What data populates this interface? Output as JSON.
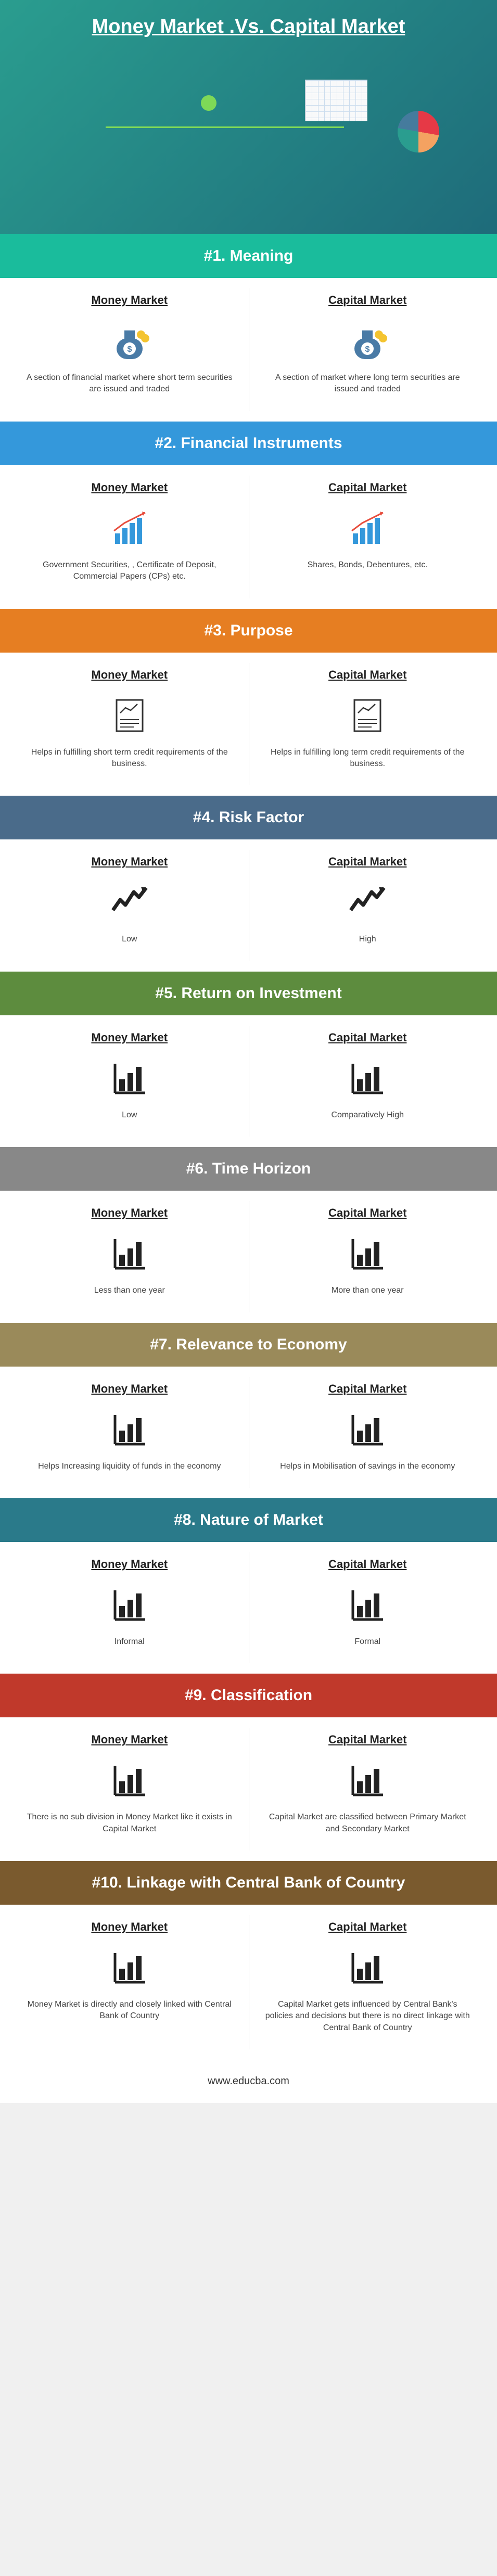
{
  "title": "Money Market .Vs. Capital Market",
  "footer": "www.educba.com",
  "col_left_title": "Money Market",
  "col_right_title": "Capital Market",
  "sections": [
    {
      "header": "#1. Meaning",
      "bg": "#1abc9c",
      "icon": "money-bag",
      "left": "A section of financial market where short term securities are issued and traded",
      "right": "A section of market where long term securities are issued and traded"
    },
    {
      "header": "#2. Financial Instruments",
      "bg": "#3498db",
      "icon": "bars-up",
      "left": "Government Securities, , Certificate of Deposit, Commercial Papers (CPs) etc.",
      "right": "Shares, Bonds, Debentures, etc."
    },
    {
      "header": "#3. Purpose",
      "bg": "#e67e22",
      "icon": "doc-chart",
      "left": "Helps in fulfilling short term credit requirements of the business.",
      "right": "Helps in fulfilling long term credit requirements of the business."
    },
    {
      "header": "#4. Risk Factor",
      "bg": "#4a6b8a",
      "icon": "zigzag",
      "left": "Low",
      "right": "High"
    },
    {
      "header": "#5. Return on Investment",
      "bg": "#5d8c3e",
      "icon": "bars",
      "left": "Low",
      "right": "Comparatively High"
    },
    {
      "header": "#6. Time Horizon",
      "bg": "#888888",
      "icon": "bars",
      "left": "Less than one year",
      "right": "More than one year"
    },
    {
      "header": "#7. Relevance to Economy",
      "bg": "#9a8a5a",
      "icon": "bars",
      "left": "Helps Increasing liquidity of funds in the economy",
      "right": "Helps in Mobilisation of savings in the economy"
    },
    {
      "header": "#8. Nature of Market",
      "bg": "#2a7a8a",
      "icon": "bars",
      "left": "Informal",
      "right": "Formal"
    },
    {
      "header": "#9. Classification",
      "bg": "#c0392b",
      "icon": "bars",
      "left": "There is no sub division in Money Market like it exists in Capital Market",
      "right": "Capital Market are classified between Primary Market and Secondary Market"
    },
    {
      "header": "#10. Linkage with Central Bank of Country",
      "bg": "#7a5a2e",
      "icon": "bars",
      "left": "Money Market is directly and closely linked with Central Bank of Country",
      "right": "Capital Market gets influenced by Central Bank's policies and decisions but there is no direct linkage with Central Bank of Country"
    }
  ]
}
